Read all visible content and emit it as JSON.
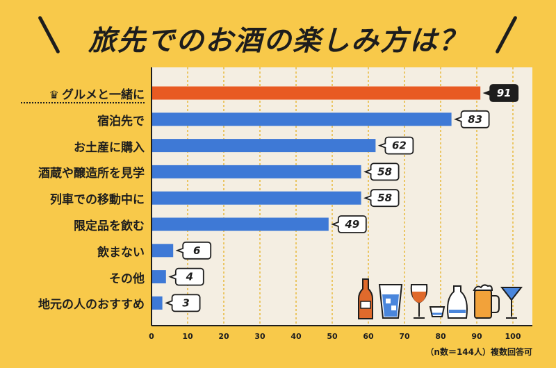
{
  "title": "旅先でのお酒の楽しみ方は？",
  "note": "（n数＝144人）複数回答可",
  "colors": {
    "highlight_bar": "#E85A22",
    "bar": "#3E79D6",
    "grid": "#E8B83A",
    "axis": "#1d1d1d"
  },
  "chart_data": {
    "type": "bar",
    "orientation": "horizontal",
    "categories": [
      "グルメと一緒に",
      "宿泊先で",
      "お土産に購入",
      "酒蔵や醸造所を見学",
      "列車での移動中に",
      "限定品を飲む",
      "飲まない",
      "その他",
      "地元の人のおすすめ"
    ],
    "values": [
      91,
      83,
      62,
      58,
      58,
      49,
      6,
      4,
      3
    ],
    "highlight_index": 0,
    "xlim": [
      0,
      100
    ],
    "x_ticks": [
      0,
      10,
      20,
      30,
      40,
      50,
      60,
      70,
      80,
      90,
      100
    ],
    "title": "旅先でのお酒の楽しみ方は？",
    "xlabel": "",
    "ylabel": "",
    "grid": true
  }
}
